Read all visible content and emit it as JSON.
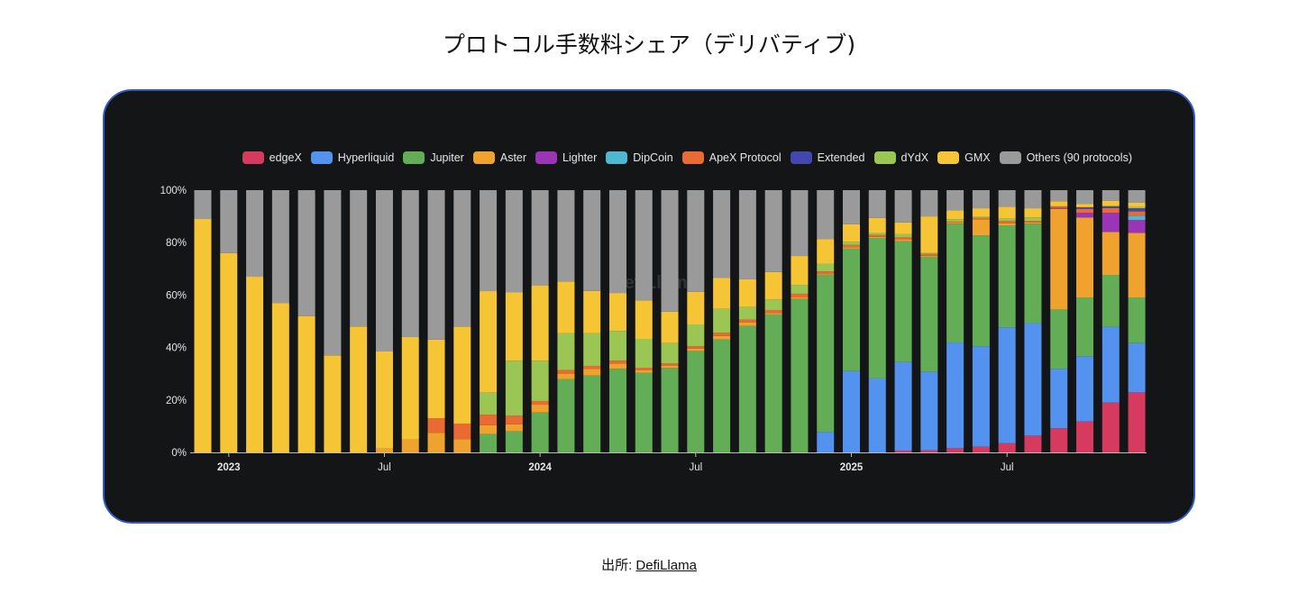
{
  "title": "プロトコル手数料シェア（デリバティブ)",
  "source": {
    "label": "出所:",
    "link_text": "DefiLlama"
  },
  "watermark": "DefiLlama",
  "chart_data": {
    "type": "bar",
    "stacked": true,
    "normalized": true,
    "title": "",
    "xlabel": "",
    "ylabel": "",
    "ylim": [
      0,
      100
    ],
    "y_ticks": [
      "0%",
      "20%",
      "40%",
      "60%",
      "80%",
      "100%"
    ],
    "x_ticks": [
      {
        "index": 1,
        "label": "2023",
        "bold": true
      },
      {
        "index": 7,
        "label": "Jul",
        "bold": false
      },
      {
        "index": 13,
        "label": "2024",
        "bold": true
      },
      {
        "index": 19,
        "label": "Jul",
        "bold": false
      },
      {
        "index": 25,
        "label": "2025",
        "bold": true
      },
      {
        "index": 31,
        "label": "Jul",
        "bold": false
      }
    ],
    "legend_position": "top-right",
    "grid": false,
    "categories": [
      "2022-12",
      "2023-01",
      "2023-02",
      "2023-03",
      "2023-04",
      "2023-05",
      "2023-06",
      "2023-07",
      "2023-08",
      "2023-09",
      "2023-10",
      "2023-11",
      "2023-12",
      "2024-01",
      "2024-02",
      "2024-03",
      "2024-04",
      "2024-05",
      "2024-06",
      "2024-07",
      "2024-08",
      "2024-09",
      "2024-10",
      "2024-11",
      "2024-12",
      "2025-01",
      "2025-02",
      "2025-03",
      "2025-04",
      "2025-05",
      "2025-06",
      "2025-07",
      "2025-08",
      "2025-09",
      "2025-10",
      "2025-11",
      "2025-12"
    ],
    "series": [
      {
        "name": "edgeX",
        "color": "#d63a5f",
        "values": [
          0,
          0,
          0,
          0,
          0,
          0,
          0,
          0,
          0,
          0,
          0,
          0,
          0,
          0,
          0,
          0,
          0,
          0,
          0,
          0,
          0,
          0,
          0,
          0,
          0,
          0,
          0,
          0.7,
          0.8,
          1.6,
          2.2,
          3.5,
          6.4,
          9.2,
          11.8,
          19,
          22.9
        ]
      },
      {
        "name": "Hyperliquid",
        "color": "#5392ef",
        "values": [
          0,
          0,
          0,
          0,
          0,
          0,
          0,
          0,
          0,
          0,
          0,
          0,
          0,
          0,
          0,
          0,
          0,
          0,
          0,
          0,
          0,
          0,
          0,
          0,
          7.8,
          31,
          28.2,
          33.8,
          30,
          40.3,
          38.3,
          44.2,
          42.9,
          22.7,
          24.9,
          28.9,
          18.8
        ]
      },
      {
        "name": "Jupiter",
        "color": "#64ad57",
        "values": [
          0,
          0,
          0,
          0,
          0,
          0,
          0,
          0,
          0,
          0,
          0,
          7,
          8,
          15.2,
          27.9,
          29.3,
          31.9,
          30.4,
          32.2,
          38.7,
          43.1,
          48.2,
          52.6,
          58.5,
          59.9,
          46.7,
          53.6,
          46,
          43.8,
          45.3,
          42.3,
          38.9,
          37.9,
          22.6,
          22.4,
          19.8,
          17.4
        ]
      },
      {
        "name": "Aster",
        "color": "#f0a22e",
        "values": [
          0,
          0,
          0,
          0,
          0,
          0,
          0,
          1.5,
          5,
          7.5,
          5,
          3.4,
          2.7,
          3,
          2,
          2.6,
          2,
          1,
          0.9,
          0.9,
          1.3,
          1.4,
          0.6,
          0.6,
          0.3,
          0.5,
          0.4,
          0.6,
          0.4,
          0.4,
          6.1,
          0.8,
          0.5,
          38.4,
          30.5,
          16.4,
          24.6
        ]
      },
      {
        "name": "Lighter",
        "color": "#9a35b5",
        "values": [
          0,
          0,
          0,
          0,
          0,
          0,
          0,
          0,
          0,
          0,
          0,
          0,
          0,
          0,
          0,
          0,
          0,
          0,
          0,
          0,
          0,
          0,
          0,
          0,
          0,
          0,
          0,
          0,
          0,
          0,
          0,
          0,
          0,
          0.3,
          1.8,
          7.3,
          4.9
        ]
      },
      {
        "name": "DipCoin",
        "color": "#4fb8d0",
        "values": [
          0,
          0,
          0,
          0,
          0,
          0,
          0,
          0,
          0,
          0,
          0,
          0,
          0,
          0,
          0,
          0,
          0,
          0,
          0,
          0,
          0,
          0,
          0,
          0,
          0,
          0,
          0,
          0,
          0,
          0,
          0,
          0,
          0,
          0,
          0,
          0,
          1.7
        ]
      },
      {
        "name": "ApeX Protocol",
        "color": "#ea6a33",
        "values": [
          0,
          0,
          0,
          0,
          0,
          0,
          0,
          0,
          0,
          5.5,
          6,
          4,
          3.3,
          1.4,
          1.5,
          1.1,
          1.1,
          0.9,
          0.8,
          0.9,
          1.2,
          1.1,
          1.1,
          1.4,
          1,
          0.9,
          0.7,
          0.9,
          0.7,
          0.4,
          0.5,
          0.8,
          0.6,
          0.6,
          1.5,
          1.8,
          1.6
        ]
      },
      {
        "name": "Extended",
        "color": "#4447b0",
        "values": [
          0,
          0,
          0,
          0,
          0,
          0,
          0,
          0,
          0,
          0,
          0,
          0,
          0,
          0,
          0,
          0,
          0,
          0,
          0,
          0,
          0,
          0,
          0,
          0,
          0,
          0,
          0,
          0,
          0,
          0,
          0,
          0,
          0,
          0,
          0.6,
          0.6,
          1.2
        ]
      },
      {
        "name": "dYdX",
        "color": "#9bc653",
        "values": [
          0,
          0,
          0,
          0,
          0,
          0,
          0,
          0,
          0,
          0,
          0,
          8.4,
          21,
          15.4,
          14,
          12.4,
          11.3,
          11,
          7.8,
          8.3,
          9.1,
          4.7,
          4,
          3.4,
          3,
          1.2,
          0.8,
          1.2,
          0.4,
          0.9,
          0.4,
          0.9,
          1.3,
          0.2,
          0,
          0.3,
          0.5
        ]
      },
      {
        "name": "GMX",
        "color": "#f5c535",
        "values": [
          89,
          76,
          67,
          57,
          52,
          37,
          48,
          37,
          39,
          30,
          37,
          38.7,
          26,
          28.7,
          19.8,
          16.2,
          14.5,
          14.7,
          12,
          12.4,
          11.8,
          10.6,
          10.5,
          11,
          9.4,
          6.7,
          5.7,
          4.5,
          13.9,
          3.4,
          3.3,
          4.6,
          3.5,
          1.8,
          1.3,
          1.9,
          1.6
        ]
      },
      {
        "name": "Others (90 protocols)",
        "color": "#9a9a9a",
        "values": [
          11,
          24,
          33,
          43,
          48,
          63,
          52,
          61.5,
          56,
          57,
          52,
          38.5,
          39,
          36.3,
          34.8,
          38.4,
          39.2,
          42,
          46.3,
          38.8,
          33.5,
          34,
          31.2,
          25.1,
          18.6,
          13,
          10.6,
          12.3,
          10,
          7.7,
          6.9,
          6.3,
          6.9,
          4.2,
          5.2,
          4,
          4.8
        ]
      }
    ]
  }
}
